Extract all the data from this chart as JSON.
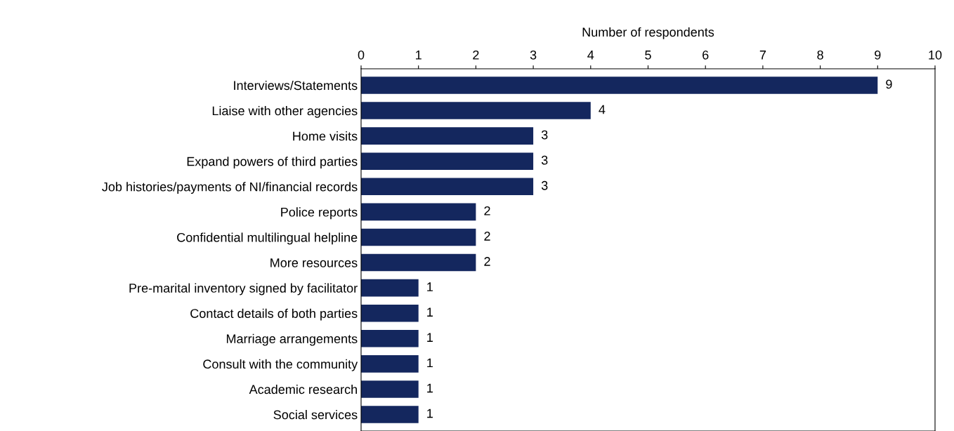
{
  "chart_data": {
    "type": "bar",
    "orientation": "horizontal",
    "xlabel": "Number of respondents",
    "categories": [
      "Interviews/Statements",
      "Liaise with other agencies",
      "Home visits",
      "Expand powers of third parties",
      "Job histories/payments of NI/financial records",
      "Police reports",
      "Confidential multilingual helpline",
      "More resources",
      "Pre-marital inventory signed by facilitator",
      "Contact details of both parties",
      "Marriage arrangements",
      "Consult with the community",
      "Academic research",
      "Social services"
    ],
    "values": [
      9,
      4,
      3,
      3,
      3,
      2,
      2,
      2,
      1,
      1,
      1,
      1,
      1,
      1
    ],
    "color": "#14275e",
    "xlim": [
      0,
      10
    ],
    "xticks": [
      0,
      1,
      2,
      3,
      4,
      5,
      6,
      7,
      8,
      9,
      10
    ],
    "data_labels": true,
    "grid": false,
    "legend": false
  }
}
